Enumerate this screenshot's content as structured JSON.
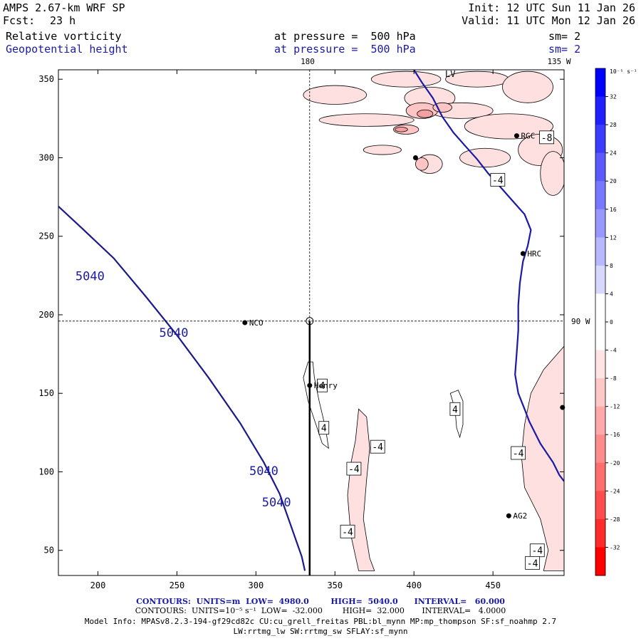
{
  "header": {
    "model": "AMPS 2.67-km WRF SP",
    "init": "Init: 12 UTC Sun 11 Jan 26",
    "fcst_label": "Fcst:",
    "fcst_value": "23 h",
    "valid": "Valid: 11 UTC Mon 12 Jan 26",
    "field1": {
      "name": "Relative vorticity",
      "level": "at pressure =  500 hPa",
      "sm": "sm= 2"
    },
    "field2": {
      "name": "Geopotential height",
      "level": "at pressure =  500 hPa",
      "sm": "sm= 2"
    }
  },
  "map_labels": {
    "lon_top_180": "180",
    "lon_top_135w": "135 W",
    "lon_right_90w": "90 W",
    "lv": "LV"
  },
  "stations": [
    {
      "name": "NCO",
      "x": 293,
      "y": 195
    },
    {
      "name": "Henry",
      "x": 334,
      "y": 155
    },
    {
      "name": "HRC",
      "x": 469,
      "y": 239
    },
    {
      "name": "RGC",
      "x": 465,
      "y": 314
    },
    {
      "name": "AG2",
      "x": 460,
      "y": 72
    },
    {
      "name": "",
      "x": 401,
      "y": 300
    },
    {
      "name": "",
      "x": 494,
      "y": 141
    }
  ],
  "footer": {
    "line1": "CONTOURS:  UNITS=m  LOW=  4980.0        HIGH=  5040.0      INTERVAL=   60.000",
    "line2": "CONTOURS:  UNITS=10⁻⁵ s⁻¹  LOW=  -32.000        HIGH=  32.000       INTERVAL=   4.0000",
    "line3": "Model Info: MPASv8.2.3-194-gf29cd82c CU:cu_grell_freitas PBL:bl_mynn MP:mp_thompson SF:sf_noahmp 2.7",
    "line4": "LW:rrtmg_lw SW:rrtmg_sw SFLAY:sf_mynn"
  },
  "colorbar": {
    "unit": "10⁻⁵ s⁻¹",
    "ticks": [
      "32",
      "28",
      "24",
      "20",
      "16",
      "12",
      "8",
      "4",
      "0",
      "-4",
      "-8",
      "-12",
      "-16",
      "-20",
      "-24",
      "-28",
      "-32"
    ],
    "colors": [
      "#0000ff",
      "#2020ff",
      "#3c3cff",
      "#5a5aff",
      "#7878ff",
      "#9898ff",
      "#b8b8ff",
      "#d8d8ff",
      "#ffffff",
      "#ffffff",
      "#ffe4e4",
      "#ffc8c8",
      "#ffaaaa",
      "#ff8c8c",
      "#ff6e6e",
      "#ff4c4c",
      "#ff2a2a",
      "#ff0000"
    ]
  },
  "chart_data": {
    "type": "contour",
    "xlim": [
      175,
      495
    ],
    "ylim": [
      34,
      356
    ],
    "xticks": [
      200,
      250,
      300,
      350,
      400,
      450
    ],
    "yticks": [
      50,
      100,
      150,
      200,
      250,
      300,
      350
    ],
    "crosshair": {
      "x": 334,
      "y": 196
    },
    "cross_section_line": [
      [
        334,
        196
      ],
      [
        334,
        34
      ]
    ],
    "height_contours": [
      {
        "value": 5040,
        "labels": [
          "5040",
          "5040",
          "5040",
          "5040"
        ],
        "points": [
          [
            175,
            269
          ],
          [
            190,
            255
          ],
          [
            210,
            236
          ],
          [
            230,
            212
          ],
          [
            250,
            187
          ],
          [
            270,
            160
          ],
          [
            290,
            131
          ],
          [
            305,
            106
          ],
          [
            315,
            86
          ],
          [
            322,
            66
          ],
          [
            329,
            46
          ],
          [
            331,
            37
          ]
        ]
      }
    ],
    "coastline": [
      [
        400,
        356
      ],
      [
        405,
        348
      ],
      [
        412,
        338
      ],
      [
        418,
        326
      ],
      [
        425,
        316
      ],
      [
        432,
        308
      ],
      [
        440,
        299
      ],
      [
        447,
        290
      ],
      [
        455,
        281
      ],
      [
        462,
        273
      ],
      [
        470,
        264
      ],
      [
        474,
        254
      ],
      [
        472,
        244
      ],
      [
        469,
        234
      ],
      [
        467,
        220
      ],
      [
        466,
        206
      ],
      [
        466,
        190
      ],
      [
        465,
        175
      ],
      [
        464,
        162
      ],
      [
        466,
        150
      ],
      [
        470,
        140
      ],
      [
        473,
        132
      ],
      [
        480,
        118
      ],
      [
        488,
        106
      ],
      [
        492,
        98
      ],
      [
        495,
        94
      ]
    ],
    "vorticity_labels": [
      {
        "text": "-4",
        "x": 453,
        "y": 286
      },
      {
        "text": "-8",
        "x": 484,
        "y": 313
      },
      {
        "text": "4",
        "x": 342,
        "y": 155
      },
      {
        "text": "4",
        "x": 343,
        "y": 128
      },
      {
        "text": "4",
        "x": 426,
        "y": 140
      },
      {
        "text": "-4",
        "x": 377,
        "y": 116
      },
      {
        "text": "-4",
        "x": 362,
        "y": 102
      },
      {
        "text": "-4",
        "x": 466,
        "y": 112
      },
      {
        "text": "-4",
        "x": 358,
        "y": 62
      },
      {
        "text": "-4",
        "x": 478,
        "y": 50
      },
      {
        "text": "-4",
        "x": 475,
        "y": 42
      }
    ]
  }
}
